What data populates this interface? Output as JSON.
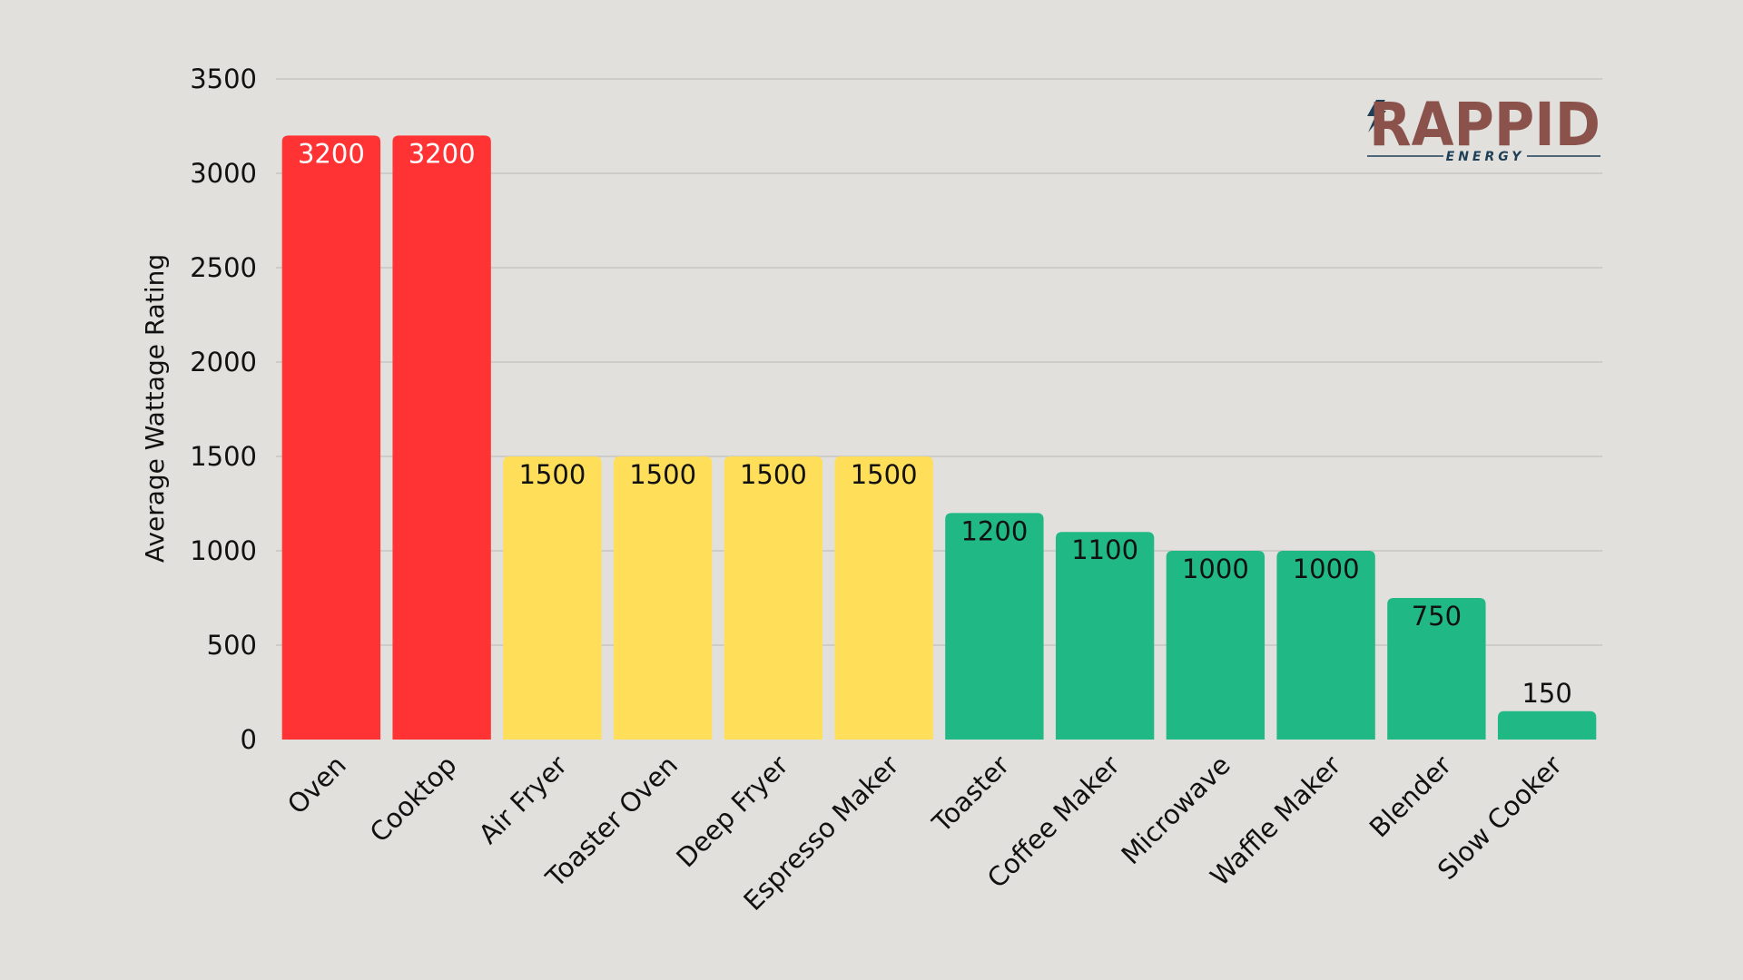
{
  "chart_data": {
    "type": "bar",
    "title": "",
    "xlabel": "",
    "ylabel": "Average Wattage Rating",
    "ylim": [
      0,
      3500
    ],
    "yticks": [
      0,
      500,
      1000,
      1500,
      2000,
      2500,
      3000,
      3500
    ],
    "grid": true,
    "categories": [
      "Oven",
      "Cooktop",
      "Air Fryer",
      "Toaster Oven",
      "Deep Fryer",
      "Espresso Maker",
      "Toaster",
      "Coffee Maker",
      "Microwave",
      "Waffle Maker",
      "Blender",
      "Slow Cooker"
    ],
    "values": [
      3200,
      3200,
      1500,
      1500,
      1500,
      1500,
      1200,
      1100,
      1000,
      1000,
      750,
      150
    ],
    "bar_colors": [
      "#ff3333",
      "#ff3333",
      "#ffde59",
      "#ffde59",
      "#ffde59",
      "#ffde59",
      "#20b985",
      "#20b985",
      "#20b985",
      "#20b985",
      "#20b985",
      "#20b985"
    ],
    "label_colors": [
      "#ffffff",
      "#ffffff",
      "#111111",
      "#111111",
      "#111111",
      "#111111",
      "#111111",
      "#111111",
      "#111111",
      "#111111",
      "#111111",
      "#111111"
    ]
  },
  "logo": {
    "name": "RAPPID",
    "tagline": "ENERGY",
    "colors": {
      "main": "#8a524a",
      "accent": "#1f3f57"
    }
  }
}
